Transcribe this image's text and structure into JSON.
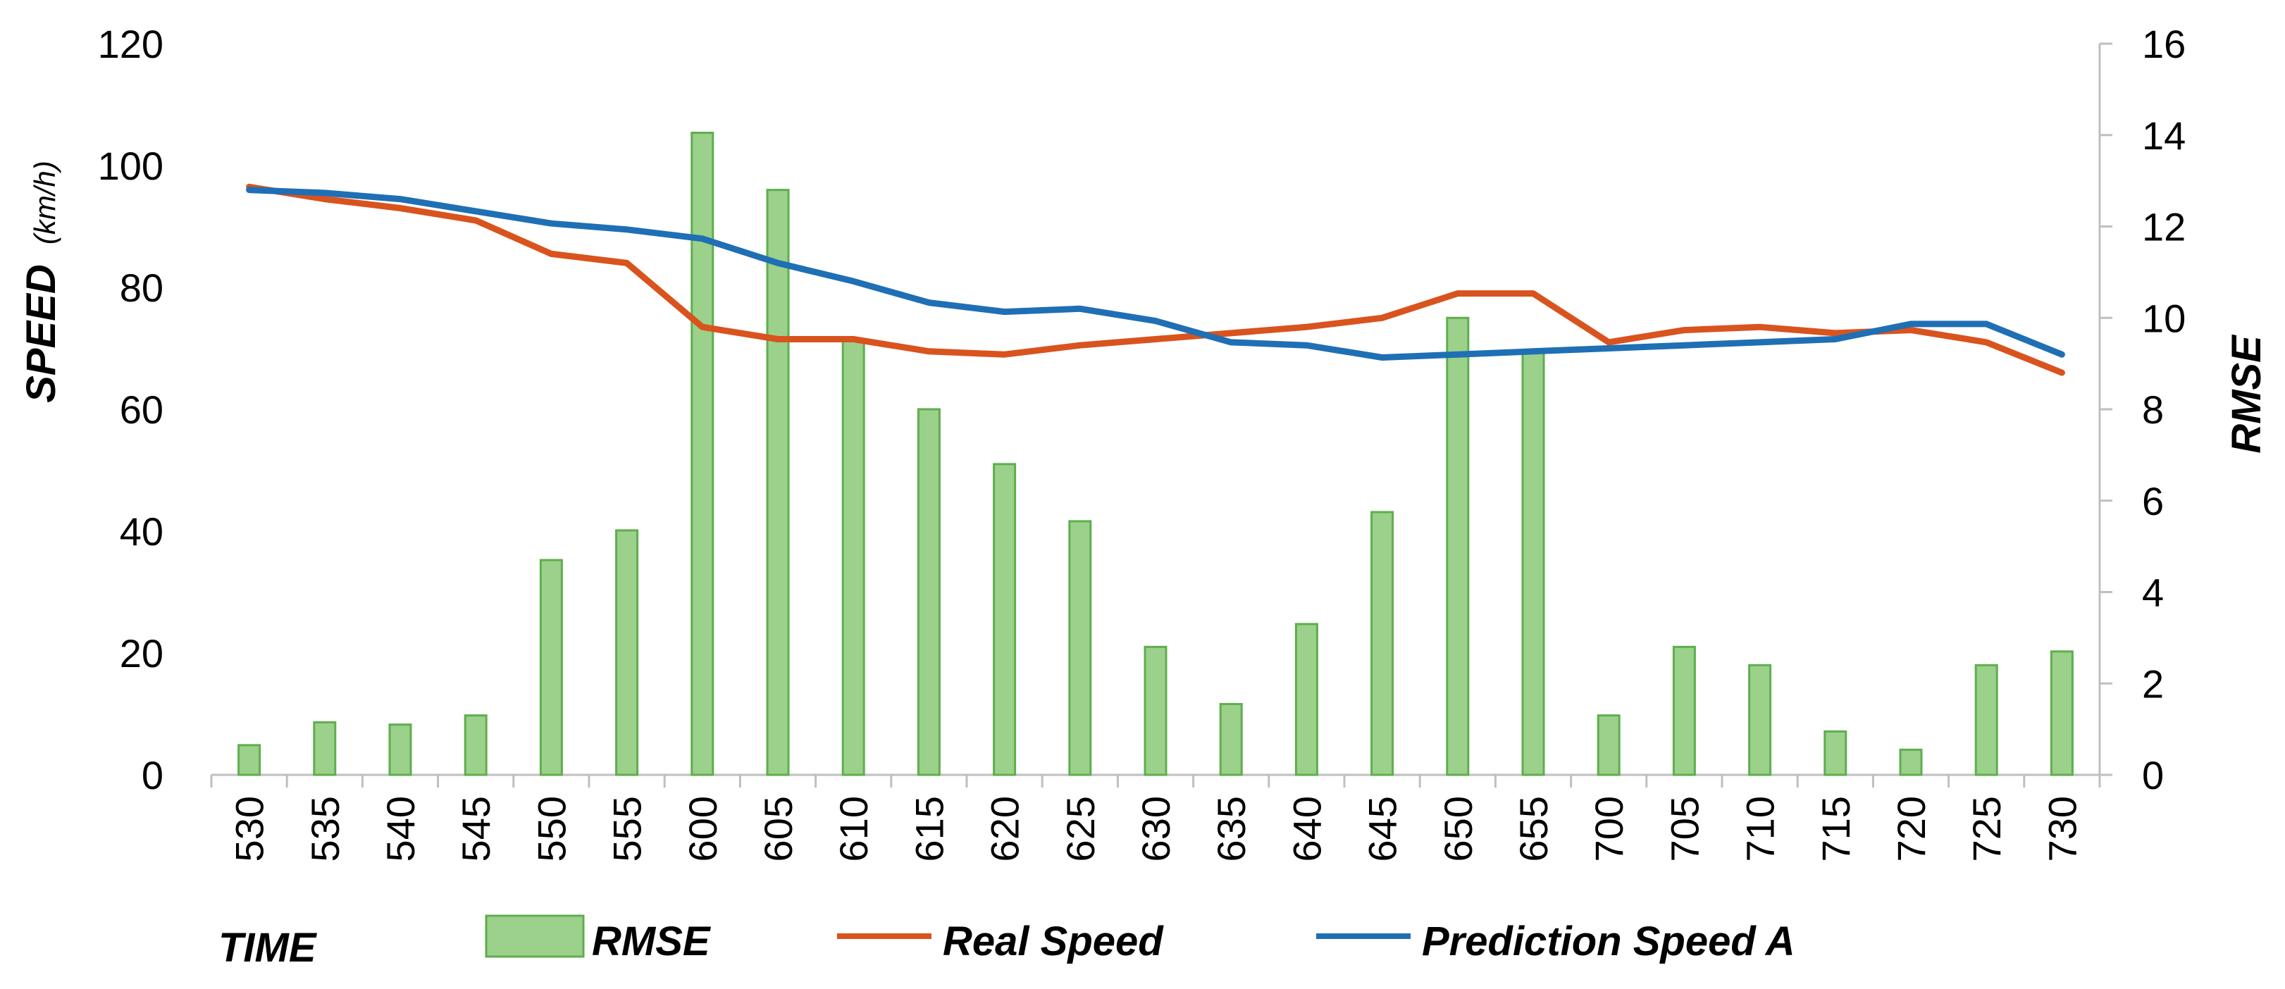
{
  "colors": {
    "bar_fill": "#9bd18a",
    "bar_stroke": "#5fae4e",
    "real_speed": "#d9531e",
    "prediction_speed": "#1f6fb5",
    "axis": "#bfbfbf"
  },
  "chart_data": {
    "type": "bar+line",
    "title": "",
    "xlabel": "TIME",
    "ylabel": "SPEED",
    "ylabel_unit": "(km/h)",
    "y2label": "RMSE",
    "ylim": [
      0,
      120
    ],
    "y2lim": [
      0,
      16
    ],
    "yticks": [
      "0",
      "20",
      "40",
      "60",
      "80",
      "100",
      "120"
    ],
    "y2ticks": [
      "0",
      "2",
      "4",
      "6",
      "8",
      "10",
      "12",
      "14",
      "16"
    ],
    "categories": [
      "530",
      "535",
      "540",
      "545",
      "550",
      "555",
      "600",
      "605",
      "610",
      "615",
      "620",
      "625",
      "630",
      "635",
      "640",
      "645",
      "650",
      "655",
      "700",
      "705",
      "710",
      "715",
      "720",
      "725",
      "730"
    ],
    "series": [
      {
        "name": "RMSE",
        "type": "bar",
        "axis": "right",
        "values": [
          0.65,
          1.15,
          1.1,
          1.3,
          4.7,
          5.35,
          14.05,
          12.8,
          9.5,
          8.0,
          6.8,
          5.55,
          2.8,
          1.55,
          3.3,
          5.75,
          10.0,
          9.3,
          1.3,
          2.8,
          2.4,
          0.95,
          0.55,
          2.4,
          2.7
        ]
      },
      {
        "name": "Real Speed",
        "type": "line",
        "axis": "left",
        "values": [
          96.5,
          94.5,
          93,
          91,
          85.5,
          84,
          73.5,
          71.5,
          71.5,
          69.5,
          69,
          70.5,
          71.5,
          72.5,
          73.5,
          75,
          79,
          79,
          71,
          73,
          73.5,
          72.5,
          73,
          71,
          66
        ]
      },
      {
        "name": "Prediction Speed A",
        "type": "line",
        "axis": "left",
        "values": [
          96,
          95.5,
          94.5,
          92.5,
          90.5,
          89.5,
          88,
          84,
          81,
          77.5,
          76,
          76.5,
          74.5,
          71,
          70.5,
          68.5,
          69,
          69.5,
          70,
          70.5,
          71,
          71.5,
          74,
          74,
          69
        ]
      }
    ],
    "legend": {
      "placement": "bottom",
      "label": "TIME",
      "items": [
        "RMSE",
        "Real Speed",
        "Prediction Speed A"
      ]
    }
  }
}
